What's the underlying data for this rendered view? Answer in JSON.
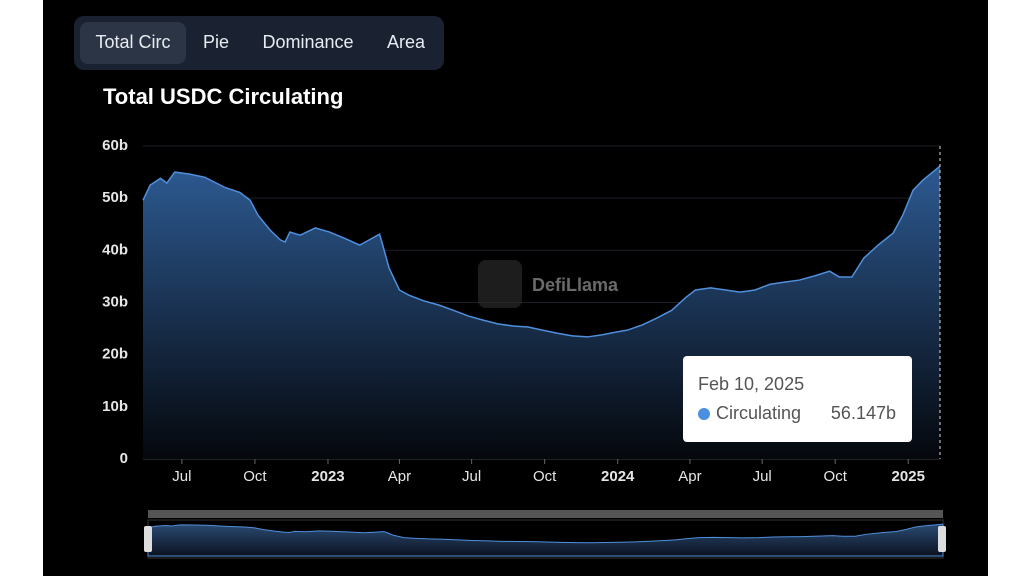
{
  "tabs": [
    "Total Circ",
    "Pie",
    "Dominance",
    "Area"
  ],
  "watermark": "DefiLlama",
  "tooltip": {
    "date": "Feb 10, 2025",
    "series": "Circulating",
    "value_label": "56.147b"
  },
  "chart_data": {
    "type": "area",
    "title": "Total USDC Circulating",
    "x": [
      "2022-05-13",
      "2022-05-22",
      "2022-06-04",
      "2022-06-12",
      "2022-06-22",
      "2022-07-11",
      "2022-07-30",
      "2022-08-12",
      "2022-08-25",
      "2022-09-12",
      "2022-09-25",
      "2022-10-05",
      "2022-10-20",
      "2022-11-02",
      "2022-11-08",
      "2022-11-14",
      "2022-11-27",
      "2022-12-16",
      "2023-01-03",
      "2023-01-22",
      "2023-02-10",
      "2023-02-22",
      "2023-03-07",
      "2023-03-11",
      "2023-03-19",
      "2023-04-01",
      "2023-04-13",
      "2023-05-02",
      "2023-05-21",
      "2023-06-08",
      "2023-06-27",
      "2023-07-16",
      "2023-08-03",
      "2023-08-22",
      "2023-09-10",
      "2023-09-28",
      "2023-10-17",
      "2023-11-05",
      "2023-11-24",
      "2023-12-12",
      "2023-12-29",
      "2024-01-13",
      "2024-02-01",
      "2024-02-19",
      "2024-03-09",
      "2024-03-27",
      "2024-04-08",
      "2024-04-27",
      "2024-05-16",
      "2024-06-03",
      "2024-06-22",
      "2024-07-11",
      "2024-07-29",
      "2024-08-17",
      "2024-09-05",
      "2024-09-24",
      "2024-10-06",
      "2024-10-22",
      "2024-11-06",
      "2024-11-24",
      "2024-12-13",
      "2024-12-25",
      "2025-01-07",
      "2025-01-19",
      "2025-02-10"
    ],
    "series": [
      {
        "name": "Circulating",
        "color": "#4f8fdc",
        "values": [
          49.6,
          52.5,
          53.8,
          52.9,
          55,
          54.6,
          54,
          53,
          52,
          51.1,
          49.6,
          46.7,
          43.9,
          42,
          41.6,
          43.5,
          42.9,
          44.3,
          43.5,
          42.3,
          41,
          42,
          43.1,
          41,
          36.6,
          32.4,
          31.4,
          30.3,
          29.5,
          28.5,
          27.4,
          26.6,
          25.9,
          25.5,
          25.3,
          24.7,
          24.1,
          23.6,
          23.4,
          23.8,
          24.3,
          24.7,
          25.7,
          27,
          28.5,
          31,
          32.4,
          32.8,
          32.4,
          32,
          32.4,
          33.5,
          33.9,
          34.3,
          35.1,
          36,
          34.9,
          34.9,
          38.5,
          41,
          43.3,
          46.7,
          51.5,
          53.4,
          56.147
        ]
      }
    ],
    "xlim": [
      "2022-05-13",
      "2025-02-10"
    ],
    "xticks": [
      {
        "value": "2022-07-01",
        "label": "Jul"
      },
      {
        "value": "2022-10-01",
        "label": "Oct"
      },
      {
        "value": "2023-01-01",
        "label": "2023"
      },
      {
        "value": "2023-04-01",
        "label": "Apr"
      },
      {
        "value": "2023-07-01",
        "label": "Jul"
      },
      {
        "value": "2023-10-01",
        "label": "Oct"
      },
      {
        "value": "2024-01-01",
        "label": "2024"
      },
      {
        "value": "2024-04-01",
        "label": "Apr"
      },
      {
        "value": "2024-07-01",
        "label": "Jul"
      },
      {
        "value": "2024-10-01",
        "label": "Oct"
      },
      {
        "value": "2025-01-01",
        "label": "2025"
      }
    ],
    "ylim": [
      0,
      60
    ],
    "yticks": [
      0,
      {
        "value": 10,
        "label": "10b"
      },
      {
        "value": 20,
        "label": "20b"
      },
      {
        "value": 30,
        "label": "30b"
      },
      {
        "value": 40,
        "label": "40b"
      },
      {
        "value": 50,
        "label": "50b"
      },
      {
        "value": 60,
        "label": "60b"
      }
    ],
    "grid": true
  }
}
